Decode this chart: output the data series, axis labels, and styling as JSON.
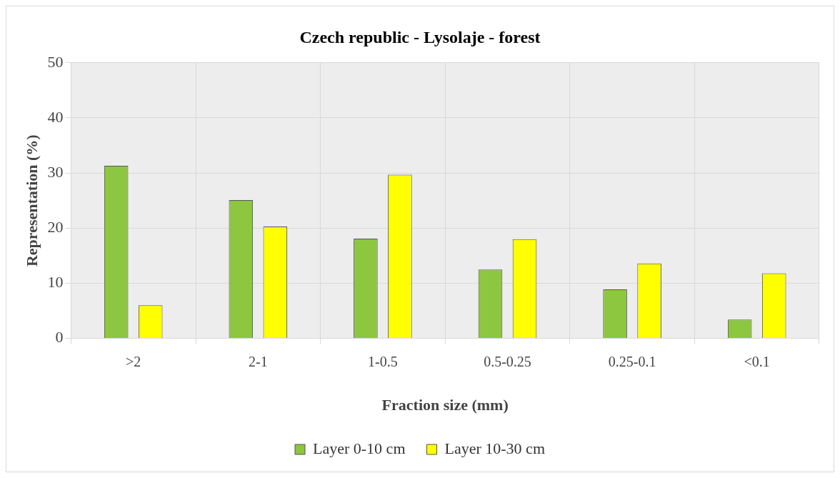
{
  "chart_data": {
    "type": "bar",
    "title": "Czech republic - Lysolaje - forest",
    "xlabel": "Fraction size (mm)",
    "ylabel": "Representation (%)",
    "categories": [
      ">2",
      "2-1",
      "1-0.5",
      "0.5-0.25",
      "0.25-0.1",
      "<0.1"
    ],
    "series": [
      {
        "name": "Layer 0-10 cm",
        "color": "#8dc63f",
        "values": [
          31.3,
          25.1,
          18.1,
          12.5,
          8.9,
          3.4
        ]
      },
      {
        "name": "Layer 10-30 cm",
        "color": "#ffff00",
        "values": [
          6.0,
          20.3,
          29.7,
          18.0,
          13.6,
          11.8
        ]
      }
    ],
    "ylim": [
      0,
      50
    ],
    "yticks": [
      0,
      10,
      20,
      30,
      40,
      50
    ],
    "grid": true,
    "legend": "bottom"
  }
}
